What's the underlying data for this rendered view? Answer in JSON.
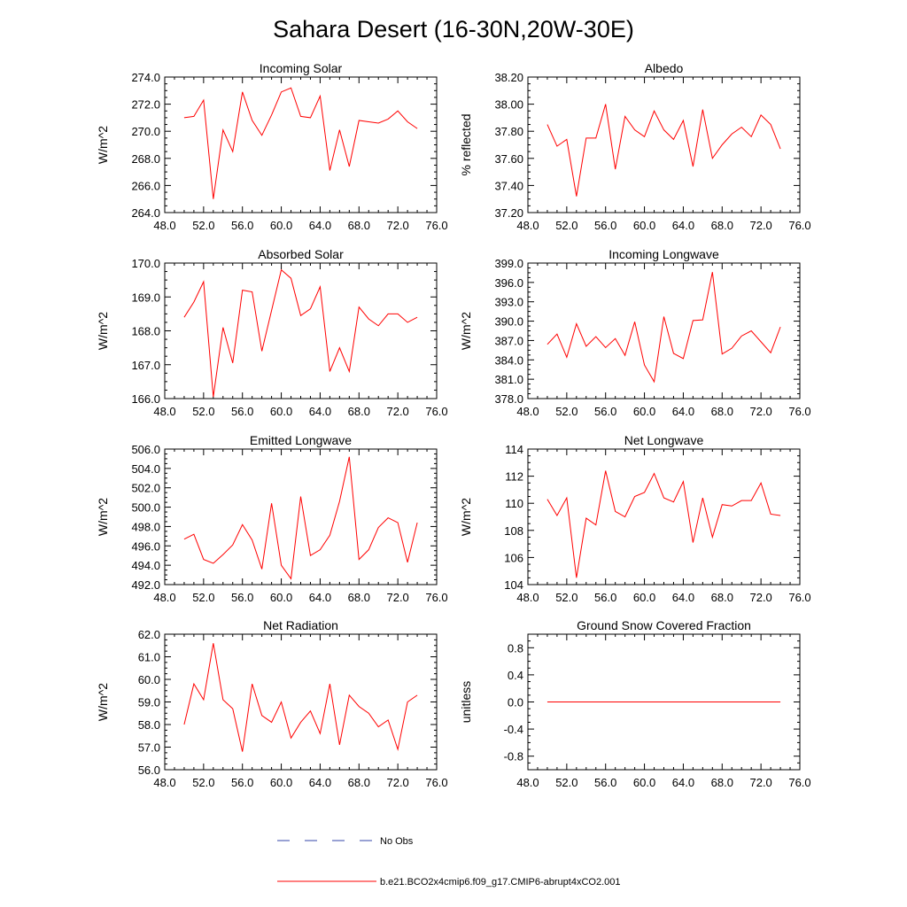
{
  "figure": {
    "title": "Sahara Desert (16-30N,20W-30E)"
  },
  "colors": {
    "model_line": "#ff0000",
    "obs_line": "#3344aa",
    "axis": "#000000"
  },
  "legend": {
    "obs_label": "No Obs",
    "model_label": "b.e21.BCO2x4cmip6.f09_g17.CMIP6-abrupt4xCO2.001"
  },
  "chart_data": [
    {
      "type": "line",
      "title": "Incoming Solar",
      "xlabel": "",
      "ylabel": "W/m^2",
      "xlim": [
        48,
        76
      ],
      "ylim": [
        264,
        274
      ],
      "xticks": [
        48,
        52,
        56,
        60,
        64,
        68,
        72,
        76
      ],
      "xtick_labels": [
        "48.0",
        "52.0",
        "56.0",
        "60.0",
        "64.0",
        "68.0",
        "72.0",
        "76.0"
      ],
      "yticks": [
        264,
        266,
        268,
        270,
        272,
        274
      ],
      "ytick_labels": [
        "264.0",
        "266.0",
        "268.0",
        "270.0",
        "272.0",
        "274.0"
      ],
      "x": [
        50,
        51,
        52,
        53,
        54,
        55,
        56,
        57,
        58,
        59,
        60,
        61,
        62,
        63,
        64,
        65,
        66,
        67,
        68,
        69,
        70,
        71,
        72,
        73,
        74
      ],
      "series": [
        {
          "name": "b.e21.BCO2x4cmip6.f09_g17.CMIP6-abrupt4xCO2.001",
          "values": [
            271.0,
            271.1,
            272.3,
            265.0,
            270.1,
            268.5,
            272.9,
            270.8,
            269.7,
            271.2,
            272.9,
            273.2,
            271.1,
            271.0,
            272.6,
            267.1,
            270.1,
            267.4,
            270.8,
            270.7,
            270.6,
            270.9,
            271.5,
            270.7,
            270.2
          ]
        }
      ]
    },
    {
      "type": "line",
      "title": "Albedo",
      "xlabel": "",
      "ylabel": "% reflected",
      "xlim": [
        48,
        76
      ],
      "ylim": [
        37.2,
        38.2
      ],
      "xticks": [
        48,
        52,
        56,
        60,
        64,
        68,
        72,
        76
      ],
      "xtick_labels": [
        "48.0",
        "52.0",
        "56.0",
        "60.0",
        "64.0",
        "68.0",
        "72.0",
        "76.0"
      ],
      "yticks": [
        37.2,
        37.4,
        37.6,
        37.8,
        38.0,
        38.2
      ],
      "ytick_labels": [
        "37.20",
        "37.40",
        "37.60",
        "37.80",
        "38.00",
        "38.20"
      ],
      "x": [
        50,
        51,
        52,
        53,
        54,
        55,
        56,
        57,
        58,
        59,
        60,
        61,
        62,
        63,
        64,
        65,
        66,
        67,
        68,
        69,
        70,
        71,
        72,
        73,
        74
      ],
      "series": [
        {
          "name": "b.e21.BCO2x4cmip6.f09_g17.CMIP6-abrupt4xCO2.001",
          "values": [
            37.85,
            37.69,
            37.74,
            37.32,
            37.75,
            37.75,
            38.0,
            37.52,
            37.91,
            37.81,
            37.76,
            37.95,
            37.81,
            37.74,
            37.88,
            37.54,
            37.96,
            37.6,
            37.7,
            37.78,
            37.83,
            37.76,
            37.92,
            37.85,
            37.67
          ]
        }
      ]
    },
    {
      "type": "line",
      "title": "Absorbed Solar",
      "xlabel": "",
      "ylabel": "W/m^2",
      "xlim": [
        48,
        76
      ],
      "ylim": [
        166,
        170
      ],
      "xticks": [
        48,
        52,
        56,
        60,
        64,
        68,
        72,
        76
      ],
      "xtick_labels": [
        "48.0",
        "52.0",
        "56.0",
        "60.0",
        "64.0",
        "68.0",
        "72.0",
        "76.0"
      ],
      "yticks": [
        166,
        167,
        168,
        169,
        170
      ],
      "ytick_labels": [
        "166.0",
        "167.0",
        "168.0",
        "169.0",
        "170.0"
      ],
      "x": [
        50,
        51,
        52,
        53,
        54,
        55,
        56,
        57,
        58,
        59,
        60,
        61,
        62,
        63,
        64,
        65,
        66,
        67,
        68,
        69,
        70,
        71,
        72,
        73,
        74
      ],
      "series": [
        {
          "name": "b.e21.BCO2x4cmip6.f09_g17.CMIP6-abrupt4xCO2.001",
          "values": [
            168.4,
            168.85,
            169.45,
            166.05,
            168.1,
            167.05,
            169.2,
            169.15,
            167.4,
            168.6,
            169.8,
            169.55,
            168.45,
            168.65,
            169.3,
            166.8,
            167.5,
            166.8,
            168.7,
            168.35,
            168.15,
            168.5,
            168.5,
            168.25,
            168.4
          ]
        }
      ]
    },
    {
      "type": "line",
      "title": "Incoming Longwave",
      "xlabel": "",
      "ylabel": "W/m^2",
      "xlim": [
        48,
        76
      ],
      "ylim": [
        378,
        399
      ],
      "xticks": [
        48,
        52,
        56,
        60,
        64,
        68,
        72,
        76
      ],
      "xtick_labels": [
        "48.0",
        "52.0",
        "56.0",
        "60.0",
        "64.0",
        "68.0",
        "72.0",
        "76.0"
      ],
      "yticks": [
        378,
        381,
        384,
        387,
        390,
        393,
        396,
        399
      ],
      "ytick_labels": [
        "378.0",
        "381.0",
        "384.0",
        "387.0",
        "390.0",
        "393.0",
        "396.0",
        "399.0"
      ],
      "x": [
        50,
        51,
        52,
        53,
        54,
        55,
        56,
        57,
        58,
        59,
        60,
        61,
        62,
        63,
        64,
        65,
        66,
        67,
        68,
        69,
        70,
        71,
        72,
        73,
        74
      ],
      "series": [
        {
          "name": "b.e21.BCO2x4cmip6.f09_g17.CMIP6-abrupt4xCO2.001",
          "values": [
            386.4,
            388.0,
            384.4,
            389.6,
            386.1,
            387.6,
            385.9,
            387.3,
            384.7,
            389.9,
            383.2,
            380.6,
            390.7,
            385.0,
            384.2,
            390.1,
            390.2,
            397.6,
            384.9,
            385.8,
            387.7,
            388.5,
            386.8,
            385.1,
            389.1
          ]
        }
      ]
    },
    {
      "type": "line",
      "title": "Emitted Longwave",
      "xlabel": "",
      "ylabel": "W/m^2",
      "xlim": [
        48,
        76
      ],
      "ylim": [
        492,
        506
      ],
      "xticks": [
        48,
        52,
        56,
        60,
        64,
        68,
        72,
        76
      ],
      "xtick_labels": [
        "48.0",
        "52.0",
        "56.0",
        "60.0",
        "64.0",
        "68.0",
        "72.0",
        "76.0"
      ],
      "yticks": [
        492,
        494,
        496,
        498,
        500,
        502,
        504,
        506
      ],
      "ytick_labels": [
        "492.0",
        "494.0",
        "496.0",
        "498.0",
        "500.0",
        "502.0",
        "504.0",
        "506.0"
      ],
      "x": [
        50,
        51,
        52,
        53,
        54,
        55,
        56,
        57,
        58,
        59,
        60,
        61,
        62,
        63,
        64,
        65,
        66,
        67,
        68,
        69,
        70,
        71,
        72,
        73,
        74
      ],
      "series": [
        {
          "name": "b.e21.BCO2x4cmip6.f09_g17.CMIP6-abrupt4xCO2.001",
          "values": [
            496.7,
            497.2,
            494.6,
            494.2,
            495.1,
            496.1,
            498.2,
            496.6,
            493.6,
            500.4,
            494.0,
            492.6,
            501.1,
            495.0,
            495.6,
            497.1,
            500.6,
            505.2,
            494.6,
            495.6,
            497.9,
            498.9,
            498.4,
            494.3,
            498.4
          ]
        }
      ]
    },
    {
      "type": "line",
      "title": "Net Longwave",
      "xlabel": "",
      "ylabel": "W/m^2",
      "xlim": [
        48,
        76
      ],
      "ylim": [
        104,
        114
      ],
      "xticks": [
        48,
        52,
        56,
        60,
        64,
        68,
        72,
        76
      ],
      "xtick_labels": [
        "48.0",
        "52.0",
        "56.0",
        "60.0",
        "64.0",
        "68.0",
        "72.0",
        "76.0"
      ],
      "yticks": [
        104,
        106,
        108,
        110,
        112,
        114
      ],
      "ytick_labels": [
        "104",
        "106",
        "108",
        "110",
        "112",
        "114"
      ],
      "x": [
        50,
        51,
        52,
        53,
        54,
        55,
        56,
        57,
        58,
        59,
        60,
        61,
        62,
        63,
        64,
        65,
        66,
        67,
        68,
        69,
        70,
        71,
        72,
        73,
        74
      ],
      "series": [
        {
          "name": "b.e21.BCO2x4cmip6.f09_g17.CMIP6-abrupt4xCO2.001",
          "values": [
            110.3,
            109.1,
            110.4,
            104.5,
            108.9,
            108.4,
            112.4,
            109.4,
            109.0,
            110.5,
            110.8,
            112.2,
            110.4,
            110.1,
            111.6,
            107.1,
            110.4,
            107.5,
            109.9,
            109.8,
            110.2,
            110.2,
            111.5,
            109.2,
            109.1
          ]
        }
      ]
    },
    {
      "type": "line",
      "title": "Net Radiation",
      "xlabel": "",
      "ylabel": "W/m^2",
      "xlim": [
        48,
        76
      ],
      "ylim": [
        56,
        62
      ],
      "xticks": [
        48,
        52,
        56,
        60,
        64,
        68,
        72,
        76
      ],
      "xtick_labels": [
        "48.0",
        "52.0",
        "56.0",
        "60.0",
        "64.0",
        "68.0",
        "72.0",
        "76.0"
      ],
      "yticks": [
        56,
        57,
        58,
        59,
        60,
        61,
        62
      ],
      "ytick_labels": [
        "56.0",
        "57.0",
        "58.0",
        "59.0",
        "60.0",
        "61.0",
        "62.0"
      ],
      "x": [
        50,
        51,
        52,
        53,
        54,
        55,
        56,
        57,
        58,
        59,
        60,
        61,
        62,
        63,
        64,
        65,
        66,
        67,
        68,
        69,
        70,
        71,
        72,
        73,
        74
      ],
      "series": [
        {
          "name": "b.e21.BCO2x4cmip6.f09_g17.CMIP6-abrupt4xCO2.001",
          "values": [
            58.0,
            59.8,
            59.1,
            61.6,
            59.1,
            58.7,
            56.8,
            59.8,
            58.4,
            58.1,
            59.0,
            57.4,
            58.1,
            58.6,
            57.6,
            59.8,
            57.1,
            59.3,
            58.8,
            58.5,
            57.9,
            58.2,
            56.9,
            59.0,
            59.3
          ]
        }
      ]
    },
    {
      "type": "line",
      "title": "Ground Snow Covered Fraction",
      "xlabel": "",
      "ylabel": "unitless",
      "xlim": [
        48,
        76
      ],
      "ylim": [
        -1.0,
        1.0
      ],
      "xticks": [
        48,
        52,
        56,
        60,
        64,
        68,
        72,
        76
      ],
      "xtick_labels": [
        "48.0",
        "52.0",
        "56.0",
        "60.0",
        "64.0",
        "68.0",
        "72.0",
        "76.0"
      ],
      "yticks": [
        -0.8,
        -0.4,
        0.0,
        0.4,
        0.8
      ],
      "ytick_labels": [
        "-0.8",
        "-0.4",
        "0.0",
        "0.4",
        "0.8"
      ],
      "x": [
        50,
        51,
        52,
        53,
        54,
        55,
        56,
        57,
        58,
        59,
        60,
        61,
        62,
        63,
        64,
        65,
        66,
        67,
        68,
        69,
        70,
        71,
        72,
        73,
        74
      ],
      "series": [
        {
          "name": "b.e21.BCO2x4cmip6.f09_g17.CMIP6-abrupt4xCO2.001",
          "values": [
            0,
            0,
            0,
            0,
            0,
            0,
            0,
            0,
            0,
            0,
            0,
            0,
            0,
            0,
            0,
            0,
            0,
            0,
            0,
            0,
            0,
            0,
            0,
            0,
            0
          ]
        }
      ]
    }
  ]
}
